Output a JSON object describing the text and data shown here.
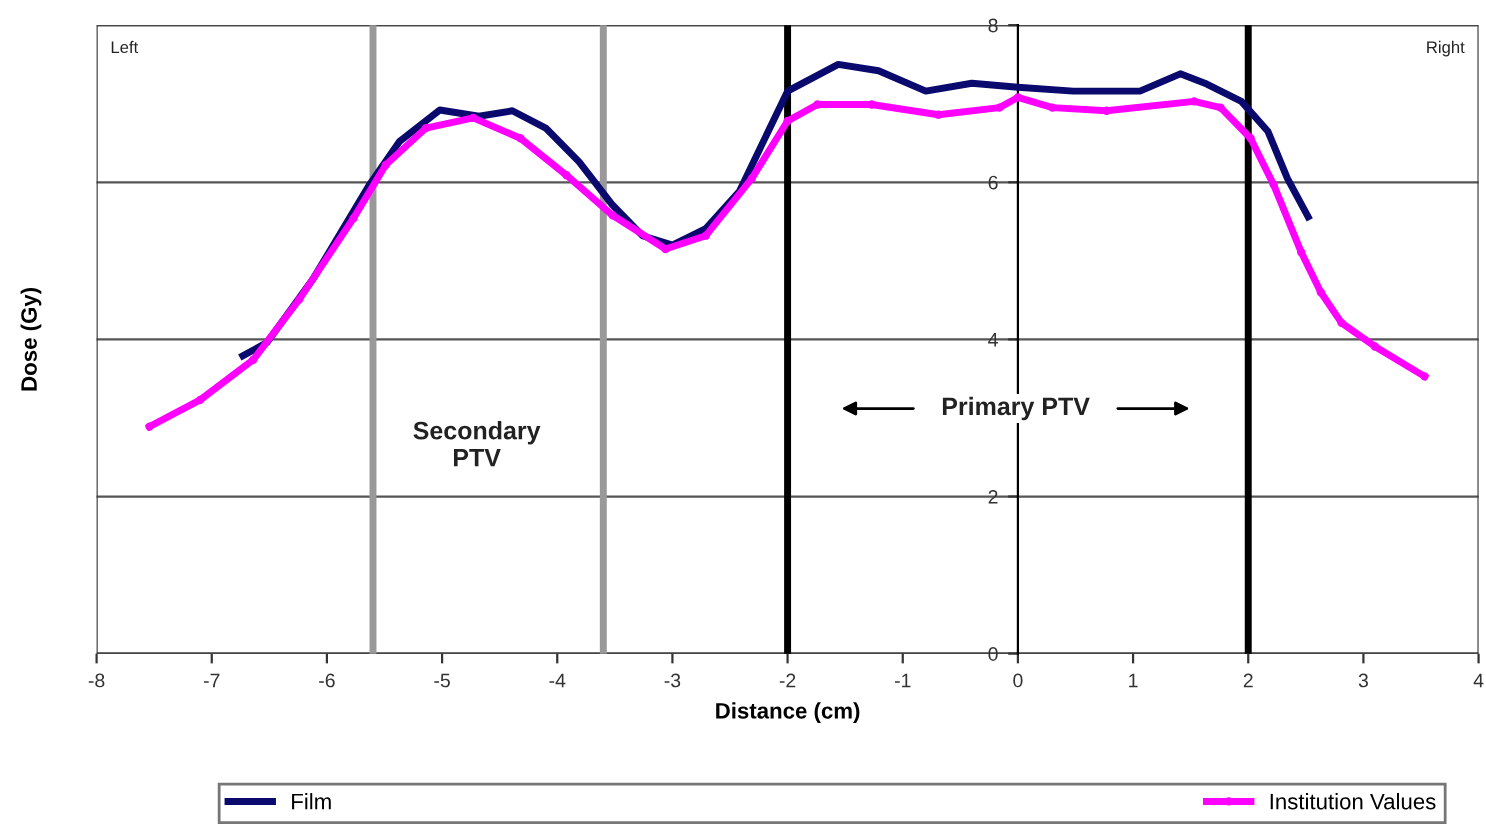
{
  "chart_data": {
    "type": "line",
    "xlabel": "Distance (cm)",
    "ylabel": "Dose (Gy)",
    "xlim": [
      -8,
      4
    ],
    "ylim": [
      0,
      8
    ],
    "xticks": [
      -8,
      -7,
      -6,
      -5,
      -4,
      -3,
      -2,
      -1,
      0,
      1,
      2,
      3,
      4
    ],
    "yticks": [
      0,
      2,
      4,
      6,
      8
    ],
    "grid": "y",
    "legend": "bottom",
    "series": [
      {
        "name": "Film",
        "color": "#0a0a6e",
        "marker": "none",
        "x": [
          -6.73,
          -6.52,
          -6.12,
          -5.63,
          -5.37,
          -5.02,
          -4.68,
          -4.39,
          -4.1,
          -3.81,
          -3.52,
          -3.26,
          -3.0,
          -2.71,
          -2.42,
          -2.0,
          -1.56,
          -1.21,
          -0.8,
          -0.4,
          0,
          0.48,
          1.06,
          1.41,
          1.64,
          1.94,
          2.17,
          2.34,
          2.52
        ],
        "values": [
          3.79,
          3.96,
          4.77,
          5.97,
          6.52,
          6.92,
          6.84,
          6.91,
          6.69,
          6.26,
          5.71,
          5.32,
          5.2,
          5.41,
          5.88,
          7.16,
          7.5,
          7.42,
          7.16,
          7.26,
          7.21,
          7.16,
          7.16,
          7.38,
          7.25,
          7.03,
          6.65,
          6.05,
          5.56
        ]
      },
      {
        "name": "Institution Values",
        "color": "#ff00ff",
        "marker": "circle",
        "x": [
          -7.54,
          -7.1,
          -6.64,
          -6.24,
          -5.77,
          -5.49,
          -5.14,
          -4.73,
          -4.32,
          -3.92,
          -3.52,
          -3.06,
          -2.71,
          -2.31,
          -2.0,
          -1.74,
          -1.27,
          -0.69,
          -0.16,
          0,
          0.3,
          0.77,
          1.53,
          1.76,
          2.02,
          2.22,
          2.46,
          2.63,
          2.81,
          3.1,
          3.53
        ],
        "values": [
          2.89,
          3.23,
          3.74,
          4.51,
          5.54,
          6.22,
          6.69,
          6.82,
          6.56,
          6.09,
          5.58,
          5.15,
          5.32,
          6.05,
          6.78,
          6.99,
          6.99,
          6.86,
          6.95,
          7.08,
          6.95,
          6.91,
          7.03,
          6.95,
          6.56,
          5.97,
          5.11,
          4.6,
          4.21,
          3.91,
          3.53
        ]
      }
    ],
    "ref_lines": [
      {
        "axis": "x",
        "value": -5.6,
        "color": "#999999"
      },
      {
        "axis": "x",
        "value": -3.6,
        "color": "#999999"
      },
      {
        "axis": "x",
        "value": -2,
        "color": "#000000"
      },
      {
        "axis": "x",
        "value": 2,
        "color": "#000000"
      }
    ],
    "annotations": [
      "Left",
      "Right",
      "Secondary\nPTV",
      "Primary PTV"
    ]
  }
}
